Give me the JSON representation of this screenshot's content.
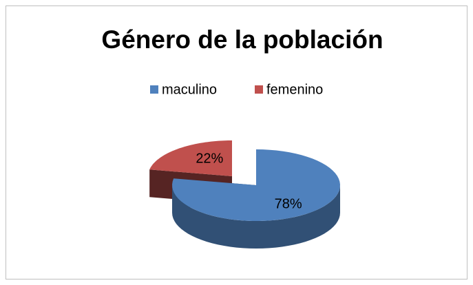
{
  "chart_data": {
    "type": "pie",
    "title": "Género de la población",
    "categories": [
      "maculino",
      "femenino"
    ],
    "values": [
      78,
      22
    ],
    "value_labels": [
      "78%",
      "22%"
    ],
    "colors": [
      "#4f81bd",
      "#c0504d"
    ],
    "legend": "top"
  }
}
